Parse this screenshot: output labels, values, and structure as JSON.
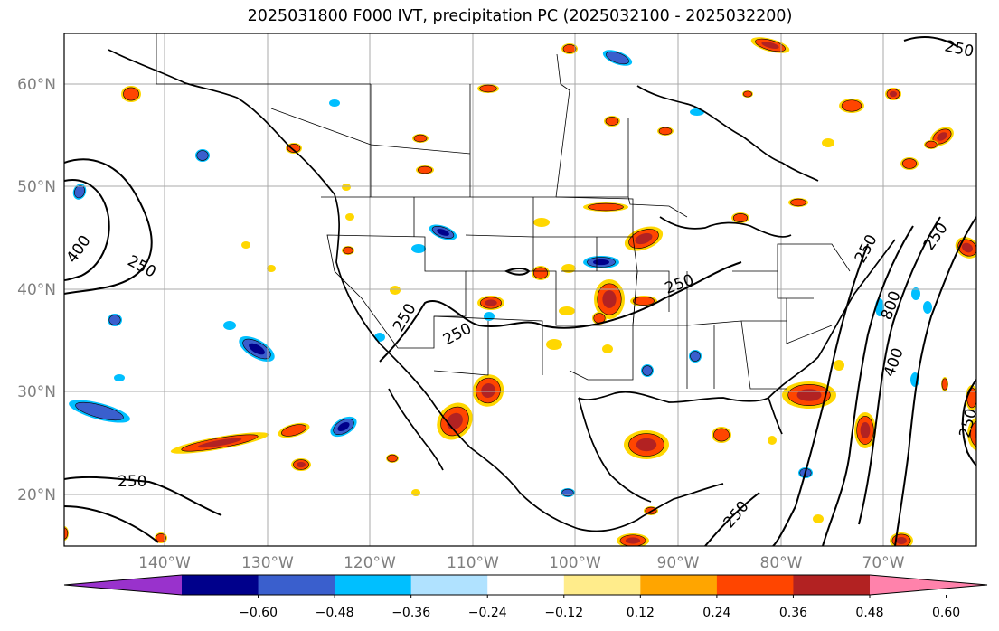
{
  "title": "2025031800 F000 IVT, precipitation PC (2025032100 - 2025032200)",
  "latitude_labels": [
    "60°N",
    "50°N",
    "40°N",
    "30°N",
    "20°N"
  ],
  "longitude_labels": [
    "140°W",
    "130°W",
    "120°W",
    "110°W",
    "100°W",
    "90°W",
    "80°W",
    "70°W"
  ],
  "contour_labels": [
    "250",
    "400",
    "250",
    "250",
    "250",
    "250",
    "250",
    "250",
    "800",
    "400",
    "250",
    "250",
    "250"
  ],
  "colorbar": {
    "tick_labels": [
      "−0.60",
      "−0.48",
      "−0.36",
      "−0.24",
      "−0.12",
      "0.12",
      "0.24",
      "0.36",
      "0.48",
      "0.60"
    ],
    "colors": [
      "#9932cc",
      "#00008b",
      "#3a5fcd",
      "#00bfff",
      "#b0e2ff",
      "#ffffff",
      "#ffec8b",
      "#ffa500",
      "#ff4500",
      "#b22222",
      "#ff82ab"
    ]
  },
  "shading_colors": {
    "positive_outer": "#ffd700",
    "positive_mid": "#ff4500",
    "positive_core": "#b22222",
    "negative_outer": "#00bfff",
    "negative_mid": "#3a5fcd",
    "negative_core": "#00008b"
  }
}
